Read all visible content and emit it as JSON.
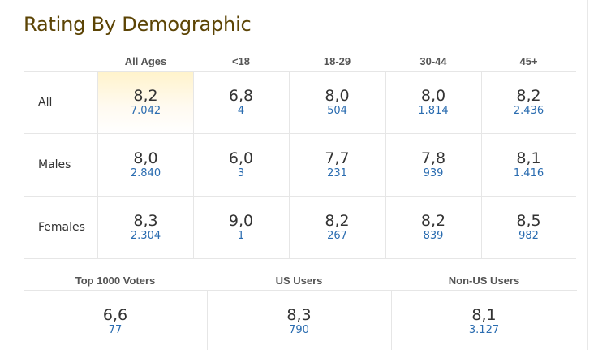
{
  "title": "Rating By Demographic",
  "columns": [
    "All Ages",
    "<18",
    "18-29",
    "30-44",
    "45+"
  ],
  "rows": [
    {
      "label": "All",
      "cells": [
        {
          "rating": "8,2",
          "votes": "7.042"
        },
        {
          "rating": "6,8",
          "votes": "4"
        },
        {
          "rating": "8,0",
          "votes": "504"
        },
        {
          "rating": "8,0",
          "votes": "1.814"
        },
        {
          "rating": "8,2",
          "votes": "2.436"
        }
      ]
    },
    {
      "label": "Males",
      "cells": [
        {
          "rating": "8,0",
          "votes": "2.840"
        },
        {
          "rating": "6,0",
          "votes": "3"
        },
        {
          "rating": "7,7",
          "votes": "231"
        },
        {
          "rating": "7,8",
          "votes": "939"
        },
        {
          "rating": "8,1",
          "votes": "1.416"
        }
      ]
    },
    {
      "label": "Females",
      "cells": [
        {
          "rating": "8,3",
          "votes": "2.304"
        },
        {
          "rating": "9,0",
          "votes": "1"
        },
        {
          "rating": "8,2",
          "votes": "267"
        },
        {
          "rating": "8,2",
          "votes": "839"
        },
        {
          "rating": "8,5",
          "votes": "982"
        }
      ]
    }
  ],
  "bottom": [
    {
      "label": "Top 1000 Voters",
      "rating": "6,6",
      "votes": "77"
    },
    {
      "label": "US Users",
      "rating": "8,3",
      "votes": "790"
    },
    {
      "label": "Non-US Users",
      "rating": "8,1",
      "votes": "3.127"
    }
  ],
  "colors": {
    "title": "#5c4405",
    "votes_link": "#2a6cb0",
    "highlight": "#fff3cc"
  }
}
